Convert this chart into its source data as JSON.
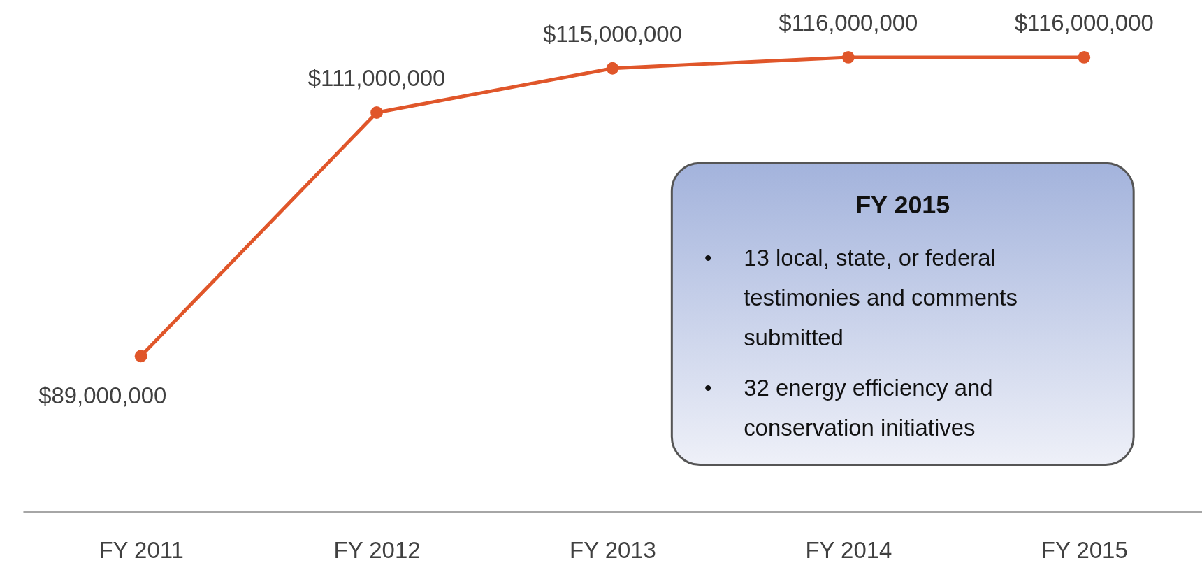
{
  "chart_data": {
    "type": "line",
    "categories": [
      "FY 2011",
      "FY 2012",
      "FY 2013",
      "FY 2014",
      "FY 2015"
    ],
    "series": [
      {
        "color": "#e0562a",
        "values": [
          89000000,
          111000000,
          115000000,
          116000000,
          116000000
        ],
        "value_labels": [
          "$89,000,000",
          "$111,000,000",
          "$115,000,000",
          "$116,000,000",
          "$116,000,000"
        ]
      }
    ],
    "tick_labels": "x",
    "marker": "circle",
    "grid": false,
    "annotations": [
      "FY 2015",
      "• 13 local, state, or federal testimonies and comments submitted",
      "• 32 energy efficiency and conservation initiatives"
    ]
  }
}
